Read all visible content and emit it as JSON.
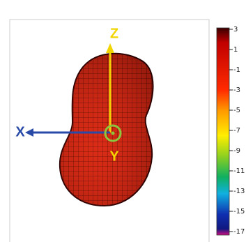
{
  "chart_data": {
    "type": "surface",
    "axis_names": {
      "z": "Z",
      "x": "X",
      "y": "Y"
    },
    "colorbar": {
      "ylim": [
        -17,
        3
      ],
      "yticks": [
        3,
        1,
        -1,
        -3,
        -5,
        -7,
        -9,
        -11,
        -13,
        -15,
        -17
      ]
    }
  }
}
